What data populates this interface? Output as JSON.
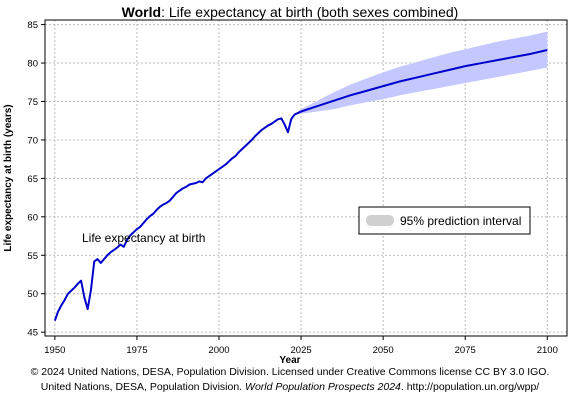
{
  "chart_data": {
    "type": "line",
    "title_bold": "World",
    "title_rest": ": Life expectancy at birth (both sexes combined)",
    "xlabel": "Year",
    "ylabel": "Life expectancy at birth (years)",
    "xlim": [
      1947,
      2106
    ],
    "ylim": [
      44.5,
      85.6
    ],
    "x_ticks": [
      1950,
      1975,
      2000,
      2025,
      2050,
      2075,
      2100
    ],
    "y_ticks": [
      45,
      50,
      55,
      60,
      65,
      70,
      75,
      80,
      85
    ],
    "grid": true,
    "annotation": "Life expectancy at birth",
    "legend": {
      "label": "95% prediction interval",
      "placement": "right"
    },
    "colors": {
      "line": "#0000cc",
      "band": "#c4c8ff",
      "legend_swatch": "#d0d0d0"
    },
    "series": [
      {
        "x": [
          1950,
          1951,
          1952,
          1953,
          1954,
          1955,
          1956,
          1957,
          1958,
          1959,
          1960,
          1961,
          1962,
          1963,
          1964,
          1965,
          1966,
          1967,
          1968,
          1969,
          1970,
          1971,
          1972,
          1973,
          1974,
          1975,
          1976,
          1977,
          1978,
          1979,
          1980,
          1981,
          1982,
          1983,
          1984,
          1985,
          1986,
          1987,
          1988,
          1989,
          1990,
          1991,
          1992,
          1993,
          1994,
          1995,
          1996,
          1997,
          1998,
          1999,
          2000,
          2001,
          2002,
          2003,
          2004,
          2005,
          2006,
          2007,
          2008,
          2009,
          2010,
          2011,
          2012,
          2013,
          2014,
          2015,
          2016,
          2017,
          2018,
          2019,
          2020,
          2021,
          2022,
          2023
        ],
        "values": [
          46.5,
          47.7,
          48.5,
          49.2,
          50.0,
          50.4,
          50.8,
          51.3,
          51.7,
          49.5,
          48.0,
          50.5,
          54.2,
          54.5,
          54.0,
          54.5,
          55.0,
          55.4,
          55.7,
          56.0,
          56.4,
          56.1,
          57.0,
          57.6,
          58.0,
          58.4,
          58.7,
          59.2,
          59.7,
          60.1,
          60.4,
          60.9,
          61.3,
          61.6,
          61.8,
          62.1,
          62.6,
          63.1,
          63.4,
          63.7,
          63.9,
          64.2,
          64.3,
          64.4,
          64.6,
          64.5,
          65.0,
          65.3,
          65.6,
          65.9,
          66.2,
          66.5,
          66.8,
          67.2,
          67.6,
          67.9,
          68.4,
          68.8,
          69.2,
          69.6,
          70.0,
          70.5,
          70.9,
          71.3,
          71.6,
          71.9,
          72.1,
          72.4,
          72.7,
          72.8,
          72.0,
          71.0,
          72.7,
          73.3
        ]
      },
      {
        "x": [
          2023,
          2025,
          2030,
          2035,
          2040,
          2045,
          2050,
          2055,
          2060,
          2065,
          2070,
          2075,
          2080,
          2085,
          2090,
          2095,
          2100
        ],
        "values": [
          73.3,
          73.7,
          74.4,
          75.1,
          75.8,
          76.4,
          77.0,
          77.6,
          78.1,
          78.6,
          79.1,
          79.6,
          80.0,
          80.4,
          80.8,
          81.2,
          81.7
        ],
        "lower": [
          73.3,
          73.4,
          73.7,
          74.0,
          74.5,
          74.9,
          75.3,
          75.8,
          76.2,
          76.6,
          77.0,
          77.4,
          77.8,
          78.2,
          78.6,
          79.0,
          79.4
        ],
        "upper": [
          73.3,
          74.0,
          75.1,
          76.2,
          77.2,
          78.0,
          78.8,
          79.5,
          80.1,
          80.7,
          81.3,
          81.8,
          82.3,
          82.8,
          83.2,
          83.6,
          84.1
        ]
      }
    ]
  },
  "footer": {
    "line1": "© 2024 United Nations, DESA, Population Division. Licensed under Creative Commons license CC BY 3.0 IGO.",
    "line2_pre": "United Nations, DESA, Population Division. ",
    "line2_ital": "World Population Prospects 2024",
    "line2_post": ". http://population.un.org/wpp/"
  }
}
